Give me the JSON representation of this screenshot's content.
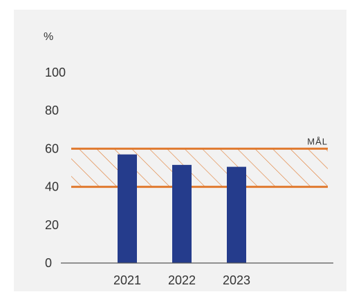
{
  "chart_data": {
    "type": "bar",
    "unit_label": "%",
    "categories": [
      "2021",
      "2022",
      "2023"
    ],
    "values": [
      57,
      51.5,
      50.5
    ],
    "ylim": [
      0,
      100
    ],
    "yticks": [
      "0",
      "20",
      "40",
      "60",
      "80",
      "100"
    ],
    "target_band": {
      "low": 40,
      "high": 60,
      "label": "MÅL"
    },
    "colors": {
      "bar": "#253C8C",
      "band": "#E07A2F",
      "axis": "#555555",
      "background": "#f2f2f2"
    }
  }
}
